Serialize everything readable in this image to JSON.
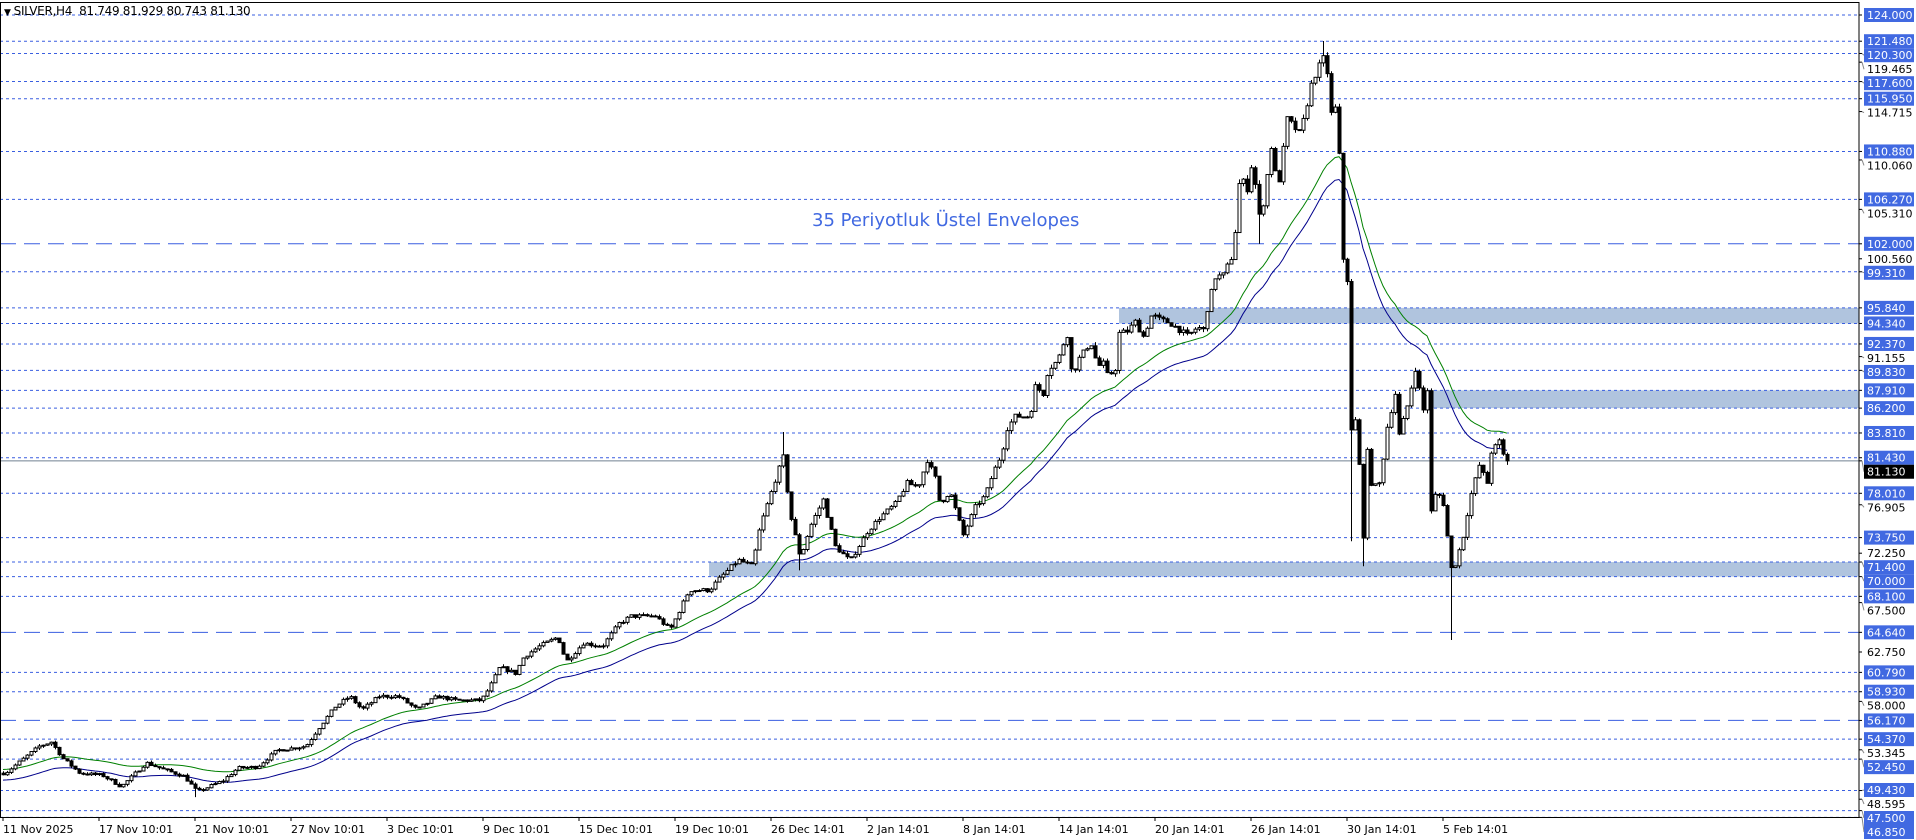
{
  "header": {
    "dropdown_icon": "triangle-down-icon",
    "title": "SILVER,H4",
    "ohlc": "81.749 81.929 80.743 81.130"
  },
  "annotation": "35 Periyotluk Üstel Envelopes",
  "colors": {
    "background": "#ffffff",
    "level_line": "#3a5fe0",
    "level_label_bg": "#4169e1",
    "level_label_text": "#ffffff",
    "zone_fill": "#b0c4de",
    "envelope_upper": "#008000",
    "envelope_lower": "#00008b",
    "bull_body": "#ffffff",
    "bear_body": "#000000",
    "current_price_line": "#708090",
    "annotation": "#4169e1"
  },
  "chart_data": {
    "type": "candlestick",
    "symbol": "SILVER",
    "timeframe": "H4",
    "last_bar": {
      "open": 81.749,
      "high": 81.929,
      "low": 80.743,
      "close": 81.13
    },
    "y_range": [
      46.85,
      124.0
    ],
    "grid": false,
    "indicator": {
      "name": "Envelopes",
      "period": 35,
      "method": "exponential"
    },
    "x_ticks": [
      {
        "label": "11 Nov 2025",
        "time": "2025-11-11 00:00"
      },
      {
        "label": "17 Nov 10:01",
        "time": "2025-11-17 10:01"
      },
      {
        "label": "21 Nov 10:01",
        "time": "2025-11-21 10:01"
      },
      {
        "label": "27 Nov 10:01",
        "time": "2025-11-27 10:01"
      },
      {
        "label": "3 Dec 10:01",
        "time": "2025-12-03 10:01"
      },
      {
        "label": "9 Dec 10:01",
        "time": "2025-12-09 10:01"
      },
      {
        "label": "15 Dec 10:01",
        "time": "2025-12-15 10:01"
      },
      {
        "label": "19 Dec 10:01",
        "time": "2025-12-19 10:01"
      },
      {
        "label": "26 Dec 14:01",
        "time": "2025-12-26 14:01"
      },
      {
        "label": "2 Jan 14:01",
        "time": "2026-01-02 14:01"
      },
      {
        "label": "8 Jan 14:01",
        "time": "2026-01-08 14:01"
      },
      {
        "label": "14 Jan 14:01",
        "time": "2026-01-14 14:01"
      },
      {
        "label": "20 Jan 14:01",
        "time": "2026-01-20 14:01"
      },
      {
        "label": "26 Jan 14:01",
        "time": "2026-01-26 14:01"
      },
      {
        "label": "30 Jan 14:01",
        "time": "2026-01-30 14:01"
      },
      {
        "label": "5 Feb 14:01",
        "time": "2026-02-05 14:01"
      }
    ],
    "y_ticks": [
      "119.465",
      "114.715",
      "110.060",
      "105.310",
      "100.560",
      "91.155",
      "76.905",
      "72.250",
      "67.500",
      "62.750",
      "58.000",
      "53.345",
      "48.595"
    ],
    "levels": [
      {
        "price": 124.0,
        "label": "124.000",
        "style": "dotted"
      },
      {
        "price": 121.48,
        "label": "121.480",
        "style": "dotted"
      },
      {
        "price": 120.3,
        "label": "120.300",
        "style": "dotted"
      },
      {
        "price": 117.6,
        "label": "117.600",
        "style": "dotted"
      },
      {
        "price": 115.95,
        "label": "115.950",
        "style": "dotted"
      },
      {
        "price": 110.88,
        "label": "110.880",
        "style": "dotted"
      },
      {
        "price": 106.27,
        "label": "106.270",
        "style": "dotted"
      },
      {
        "price": 102.0,
        "label": "102.000",
        "style": "dashed"
      },
      {
        "price": 99.31,
        "label": "99.310",
        "style": "dotted"
      },
      {
        "price": 95.84,
        "label": "95.840",
        "style": "dotted"
      },
      {
        "price": 94.34,
        "label": "94.340",
        "style": "dotted"
      },
      {
        "price": 92.37,
        "label": "92.370",
        "style": "dotted"
      },
      {
        "price": 89.83,
        "label": "89.830",
        "style": "dotted"
      },
      {
        "price": 87.91,
        "label": "87.910",
        "style": "dotted"
      },
      {
        "price": 86.2,
        "label": "86.200",
        "style": "dotted"
      },
      {
        "price": 83.81,
        "label": "83.810",
        "style": "dotted"
      },
      {
        "price": 81.43,
        "label": "81.430",
        "style": "dotted"
      },
      {
        "price": 78.01,
        "label": "78.010",
        "style": "dotted"
      },
      {
        "price": 73.75,
        "label": "73.750",
        "style": "dotted"
      },
      {
        "price": 71.4,
        "label": "71.400",
        "style": "dotted"
      },
      {
        "price": 70.0,
        "label": "70.000",
        "style": "dotted"
      },
      {
        "price": 68.1,
        "label": "68.100",
        "style": "dotted"
      },
      {
        "price": 64.64,
        "label": "64.640",
        "style": "dashed"
      },
      {
        "price": 60.79,
        "label": "60.790",
        "style": "dotted"
      },
      {
        "price": 58.93,
        "label": "58.930",
        "style": "dotted"
      },
      {
        "price": 56.17,
        "label": "56.170",
        "style": "dashed"
      },
      {
        "price": 54.37,
        "label": "54.370",
        "style": "dotted"
      },
      {
        "price": 52.45,
        "label": "52.450",
        "style": "dotted"
      },
      {
        "price": 49.43,
        "label": "49.430",
        "style": "dotted"
      },
      {
        "price": 47.5,
        "label": "47.500",
        "style": "dotted"
      },
      {
        "price": 46.85,
        "label": "46.850",
        "style": "dotted"
      }
    ],
    "zones": [
      {
        "from": "2025-12-21 23:00",
        "low": 70.0,
        "high": 71.4
      },
      {
        "from": "2026-01-18 08:00",
        "low": 94.34,
        "high": 95.84
      },
      {
        "from": "2026-02-04 21:00",
        "low": 86.2,
        "high": 87.91
      }
    ],
    "current_price": {
      "value": 81.13,
      "label": "81.130"
    },
    "extremes": [
      [
        "2025-11-21 13:00",
        "low",
        48.8
      ],
      [
        "2025-12-27 11:00",
        "high",
        83.9
      ],
      [
        "2025-12-28 17:00",
        "low",
        70.6
      ],
      [
        "2026-01-26 23:00",
        "low",
        102.0
      ],
      [
        "2026-01-29 14:00",
        "high",
        121.5
      ],
      [
        "2026-01-30 20:00",
        "low",
        73.4
      ],
      [
        "2026-01-31 14:00",
        "low",
        71.0
      ],
      [
        "2026-02-06 02:00",
        "low",
        63.9
      ]
    ],
    "close_path": [
      [
        "2025-11-11 03:00",
        51.1
      ],
      [
        "2025-11-13 10:00",
        53.7
      ],
      [
        "2025-11-14 05:00",
        54.1
      ],
      [
        "2025-11-15 00:00",
        52.5
      ],
      [
        "2025-11-16 03:00",
        51.1
      ],
      [
        "2025-11-17 13:00",
        50.9
      ],
      [
        "2025-11-18 08:00",
        49.8
      ],
      [
        "2025-11-19 09:00",
        52.1
      ],
      [
        "2025-11-20 04:00",
        51.4
      ],
      [
        "2025-11-20 23:00",
        50.8
      ],
      [
        "2025-11-21 13:00",
        49.3
      ],
      [
        "2025-11-23 04:00",
        50.4
      ],
      [
        "2025-11-24 02:00",
        51.6
      ],
      [
        "2025-11-25 07:00",
        51.7
      ],
      [
        "2025-11-26 13:00",
        53.3
      ],
      [
        "2025-11-28 08:00",
        53.7
      ],
      [
        "2025-11-29 05:00",
        55.6
      ],
      [
        "2025-11-30 04:00",
        57.5
      ],
      [
        "2025-12-01 02:00",
        58.5
      ],
      [
        "2025-12-01 20:00",
        57.2
      ],
      [
        "2025-12-02 22:00",
        58.5
      ],
      [
        "2025-12-04 02:00",
        58.5
      ],
      [
        "2025-12-05 07:00",
        57.2
      ],
      [
        "2025-12-06 13:00",
        58.5
      ],
      [
        "2025-12-07 17:00",
        58.1
      ],
      [
        "2025-12-09 07:00",
        58.1
      ],
      [
        "2025-12-09 20:00",
        59.4
      ],
      [
        "2025-12-10 11:00",
        61.3
      ],
      [
        "2025-12-11 10:00",
        60.7
      ],
      [
        "2025-12-11 23:00",
        62.3
      ],
      [
        "2025-12-12 22:00",
        63.3
      ],
      [
        "2025-12-14 02:00",
        64.2
      ],
      [
        "2025-12-14 14:00",
        61.8
      ],
      [
        "2025-12-15 14:00",
        63.6
      ],
      [
        "2025-12-16 09:00",
        63.3
      ],
      [
        "2025-12-17 02:00",
        65.5
      ],
      [
        "2025-12-17 14:00",
        66.2
      ],
      [
        "2025-12-18 14:00",
        66.2
      ],
      [
        "2025-12-19 05:00",
        64.9
      ],
      [
        "2025-12-20 11:00",
        68.7
      ],
      [
        "2025-12-21 23:00",
        68.7
      ],
      [
        "2025-12-22 15:00",
        69.7
      ],
      [
        "2025-12-24 03:00",
        71.6
      ],
      [
        "2025-12-25 04:00",
        71.0
      ],
      [
        "2025-12-25 18:00",
        74.8
      ],
      [
        "2025-12-26 21:00",
        79.3
      ],
      [
        "2025-12-27 11:00",
        81.5
      ],
      [
        "2025-12-27 23:00",
        76.0
      ],
      [
        "2025-12-28 17:00",
        71.8
      ],
      [
        "2025-12-29 10:00",
        74.8
      ],
      [
        "2025-12-30 09:00",
        77.4
      ],
      [
        "2025-12-31 06:00",
        72.9
      ],
      [
        "2026-01-01 08:00",
        71.5
      ],
      [
        "2026-01-02 14:00",
        74.3
      ],
      [
        "2026-01-03 09:00",
        75.7
      ],
      [
        "2026-01-04 08:00",
        77.0
      ],
      [
        "2026-01-05 02:00",
        79.0
      ],
      [
        "2026-01-05 18:00",
        78.6
      ],
      [
        "2026-01-06 08:00",
        81.2
      ],
      [
        "2026-01-06 20:00",
        79.5
      ],
      [
        "2026-01-07 03:00",
        77.0
      ],
      [
        "2026-01-07 18:00",
        78.2
      ],
      [
        "2026-01-08 14:00",
        74.0
      ],
      [
        "2026-01-09 08:00",
        76.7
      ],
      [
        "2026-01-09 23:00",
        77.8
      ],
      [
        "2026-01-10 11:00",
        80.0
      ],
      [
        "2026-01-11 01:00",
        82.0
      ],
      [
        "2026-01-11 05:00",
        84.0
      ],
      [
        "2026-01-11 20:00",
        85.4
      ],
      [
        "2026-01-12 18:00",
        85.4
      ],
      [
        "2026-01-13 02:00",
        88.3
      ],
      [
        "2026-01-13 14:00",
        87.6
      ],
      [
        "2026-01-13 21:00",
        89.9
      ],
      [
        "2026-01-14 12:00",
        90.8
      ],
      [
        "2026-01-14 20:00",
        92.4
      ],
      [
        "2026-01-15 03:00",
        93.4
      ],
      [
        "2026-01-15 09:00",
        89.2
      ],
      [
        "2026-01-15 18:00",
        90.8
      ],
      [
        "2026-01-16 08:00",
        92.1
      ],
      [
        "2026-01-16 15:00",
        92.4
      ],
      [
        "2026-01-16 23:00",
        90.2
      ],
      [
        "2026-01-17 08:00",
        90.5
      ],
      [
        "2026-01-17 15:00",
        89.2
      ],
      [
        "2026-01-18 02:00",
        90.0
      ],
      [
        "2026-01-18 08:00",
        93.4
      ],
      [
        "2026-01-18 20:00",
        93.6
      ],
      [
        "2026-01-19 08:00",
        94.5
      ],
      [
        "2026-01-19 20:00",
        93.1
      ],
      [
        "2026-01-20 09:00",
        95.2
      ],
      [
        "2026-01-20 21:00",
        94.7
      ],
      [
        "2026-01-21 12:00",
        94.4
      ],
      [
        "2026-01-22 03:00",
        93.7
      ],
      [
        "2026-01-22 15:00",
        93.1
      ],
      [
        "2026-01-23 05:00",
        94.0
      ],
      [
        "2026-01-23 14:00",
        93.7
      ],
      [
        "2026-01-23 21:00",
        96.1
      ],
      [
        "2026-01-24 08:00",
        98.8
      ],
      [
        "2026-01-24 20:00",
        99.0
      ],
      [
        "2026-01-25 09:00",
        100.8
      ],
      [
        "2026-01-25 14:00",
        103.2
      ],
      [
        "2026-01-25 21:00",
        108.5
      ],
      [
        "2026-01-26 08:00",
        107.3
      ],
      [
        "2026-01-26 15:00",
        110.0
      ],
      [
        "2026-01-26 23:00",
        103.9
      ],
      [
        "2026-01-27 11:00",
        112.0
      ],
      [
        "2026-01-27 16:00",
        106.7
      ],
      [
        "2026-01-28 02:00",
        114.0
      ],
      [
        "2026-01-28 15:00",
        112.5
      ],
      [
        "2026-01-29 03:00",
        117.7
      ],
      [
        "2026-01-29 09:00",
        118.9
      ],
      [
        "2026-01-29 14:00",
        119.8
      ],
      [
        "2026-01-29 18:00",
        118.5
      ],
      [
        "2026-01-29 23:00",
        113.5
      ],
      [
        "2026-01-30 03:00",
        115.5
      ],
      [
        "2026-01-30 07:00",
        108.8
      ],
      [
        "2026-01-30 10:00",
        100.6
      ],
      [
        "2026-01-30 14:00",
        98.6
      ],
      [
        "2026-01-30 20:00",
        84.0
      ],
      [
        "2026-01-31 02:00",
        85.0
      ],
      [
        "2026-01-31 08:00",
        80.7
      ],
      [
        "2026-01-31 14:00",
        73.9
      ],
      [
        "2026-01-31 20:00",
        82.0
      ],
      [
        "2026-02-01 03:00",
        78.5
      ],
      [
        "2026-02-01 15:00",
        79.0
      ],
      [
        "2026-02-02 02:00",
        84.4
      ],
      [
        "2026-02-02 14:00",
        87.6
      ],
      [
        "2026-02-02 20:00",
        83.6
      ],
      [
        "2026-02-03 08:00",
        86.4
      ],
      [
        "2026-02-03 20:00",
        90.0
      ],
      [
        "2026-02-04 08:00",
        86.0
      ],
      [
        "2026-02-04 14:00",
        88.0
      ],
      [
        "2026-02-04 21:00",
        74.3
      ],
      [
        "2026-02-05 03:00",
        78.5
      ],
      [
        "2026-02-05 14:00",
        77.0
      ],
      [
        "2026-02-06 02:00",
        70.8
      ],
      [
        "2026-02-06 08:00",
        71.2
      ],
      [
        "2026-02-06 20:00",
        73.9
      ],
      [
        "2026-02-07 06:00",
        77.5
      ],
      [
        "2026-02-07 20:00",
        80.7
      ],
      [
        "2026-02-08 08:00",
        79.0
      ],
      [
        "2026-02-08 14:00",
        82.0
      ],
      [
        "2026-02-09 02:00",
        83.0
      ],
      [
        "2026-02-09 08:00",
        81.7
      ],
      [
        "2026-02-09 14:00",
        81.13
      ]
    ]
  }
}
